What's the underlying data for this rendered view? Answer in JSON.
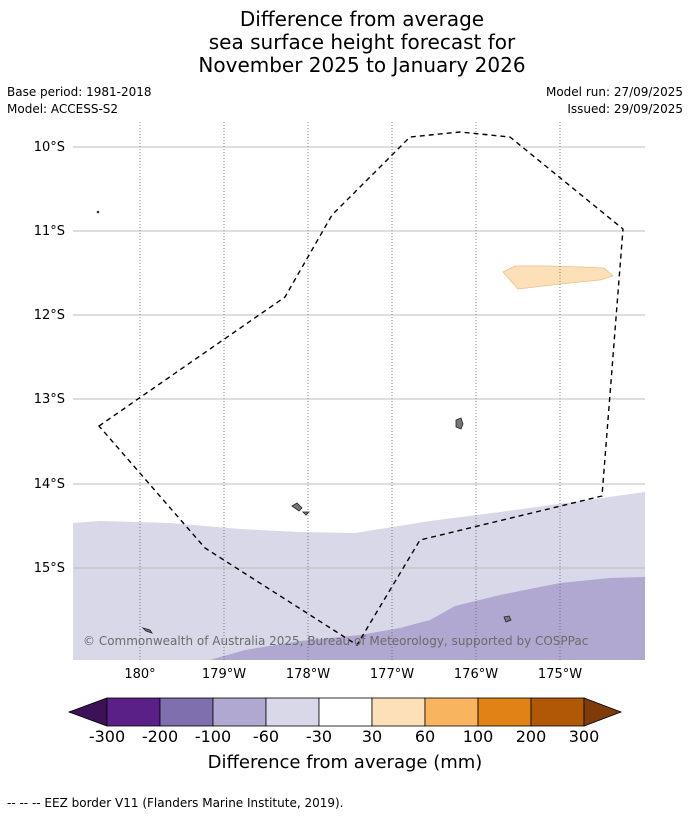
{
  "title": {
    "line1": "Difference from average",
    "line2": "sea surface height forecast for",
    "line3": "November 2025 to January 2026"
  },
  "meta": {
    "base_period": "Base period: 1981-2018",
    "model": "Model: ACCESS-S2",
    "model_run": "Model run: 27/09/2025",
    "issued": "Issued: 29/09/2025"
  },
  "map": {
    "lat_labels": [
      "10°S",
      "11°S",
      "12°S",
      "13°S",
      "14°S",
      "15°S"
    ],
    "lon_labels": [
      "180°",
      "179°W",
      "178°W",
      "177°W",
      "176°W",
      "175°W"
    ],
    "copyright": "© Commonwealth of Australia 2025, Bureau of Meteorology, supported by COSPPac"
  },
  "colorbar": {
    "labels": [
      "-300",
      "-200",
      "-100",
      "-60",
      "-30",
      "30",
      "60",
      "100",
      "200",
      "300"
    ],
    "colors": [
      "#3d1155",
      "#5b2088",
      "#7f6fae",
      "#b0a8d0",
      "#d8d8e8",
      "#ffffff",
      "#fde0b8",
      "#f9b460",
      "#e08215",
      "#b15806",
      "#7f3c0a"
    ],
    "title": "Difference from average (mm)"
  },
  "footnote": "--  --  -- EEZ border V11 (Flanders Marine Institute, 2019)."
}
